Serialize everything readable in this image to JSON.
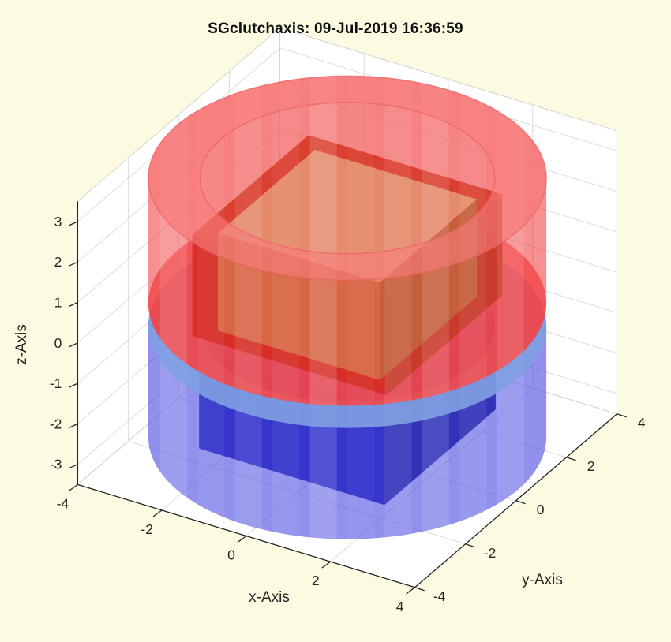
{
  "figure": {
    "background": "#FCFAE1",
    "axes_background": "#FFFFFF",
    "grid_color": "#DCDCDC",
    "wall_edge_color": "#D2D2D2",
    "axis_line_color": "#262626",
    "tick_label_color": "#262626",
    "title_color": "#111111"
  },
  "chart_data": {
    "type": "3d-solid-geometry",
    "title": "SGclutchaxis: 09-Jul-2019 16:36:59",
    "xlabel": "x-Axis",
    "ylabel": "y-Axis",
    "zlabel": "z-Axis",
    "xticks": [
      -4,
      -2,
      0,
      2,
      4
    ],
    "yticks": [
      -4,
      -2,
      0,
      2,
      4
    ],
    "zticks": [
      -3,
      -2,
      -1,
      0,
      1,
      2,
      3
    ],
    "xlim": [
      -4,
      4
    ],
    "ylim": [
      -4,
      4
    ],
    "zlim": [
      -3.5,
      3.5
    ],
    "view": {
      "azimuth": -37.5,
      "elevation": 30
    },
    "grid": true,
    "legend": "none",
    "objects": [
      {
        "name": "lower-clutch-drum-body",
        "shape": "cylinder-body",
        "radius": 4.05,
        "z_top": -0.45,
        "z_bottom": -3.2,
        "fill": "rgba(42,42,215,0.42)"
      },
      {
        "name": "lower-clutch-hub-box",
        "shape": "box",
        "half_width": 2.2,
        "z_top": -0.6,
        "z_bottom": -3.0,
        "faces": {
          "top": "rgba(45,45,205,0.95)",
          "front": "rgba(30,30,190,0.95)",
          "side": "rgba(24,24,160,0.95)"
        }
      },
      {
        "name": "lower-clutch-drum-front-wall",
        "shape": "cylinder-body",
        "radius": 4.05,
        "z_top": -0.45,
        "z_bottom": -3.2,
        "fill": "rgba(95,95,235,0.30)",
        "stripes": true
      },
      {
        "name": "lower-clutch-rim-top",
        "shape": "annulus",
        "radius": 4.05,
        "inner_radius": 3.0,
        "z": -0.45,
        "fill": "rgba(128,160,226,0.90)"
      },
      {
        "name": "upper-clutch-flange-disc",
        "shape": "disc",
        "radius": 4.05,
        "z": 0.1,
        "fill": "rgba(243,100,105,0.82)"
      },
      {
        "name": "upper-clutch-drum-body",
        "shape": "cylinder-body",
        "radius": 4.05,
        "z_top": 3.2,
        "z_bottom": 0.1,
        "fill": "rgba(240,45,45,0.40)"
      },
      {
        "name": "upper-clutch-interior-cap",
        "shape": "disc",
        "radius": 4.05,
        "z": 3.2,
        "fill": "rgba(247,128,128,0.40)"
      },
      {
        "name": "upper-clutch-hub-box-outer",
        "shape": "box",
        "half_width": 2.3,
        "z_top": 2.3,
        "z_bottom": -0.2,
        "faces": {
          "top": "rgba(210,60,38,0.95)",
          "front": "rgba(205,42,32,0.95)",
          "side": "rgba(185,58,34,0.95)"
        }
      },
      {
        "name": "upper-clutch-hub-box-inner",
        "shape": "box",
        "half_width": 1.92,
        "z_top": 2.26,
        "z_bottom": -0.15,
        "faces": {
          "top": "rgba(225,170,128,0.96)",
          "front": "rgba(208,120,74,0.96)",
          "side": "rgba(182,108,60,0.96)"
        }
      },
      {
        "name": "upper-clutch-drum-front-wall",
        "shape": "cylinder-body",
        "radius": 4.05,
        "z_top": 3.2,
        "z_bottom": 0.1,
        "fill": "rgba(241,60,60,0.24)",
        "stripes": true
      },
      {
        "name": "upper-clutch-rim-top",
        "shape": "annulus",
        "radius": 4.05,
        "inner_radius": 3.0,
        "z": 3.2,
        "fill": "rgba(248,125,125,0.60)",
        "stroke": "rgba(238,95,95,0.7)"
      }
    ]
  }
}
